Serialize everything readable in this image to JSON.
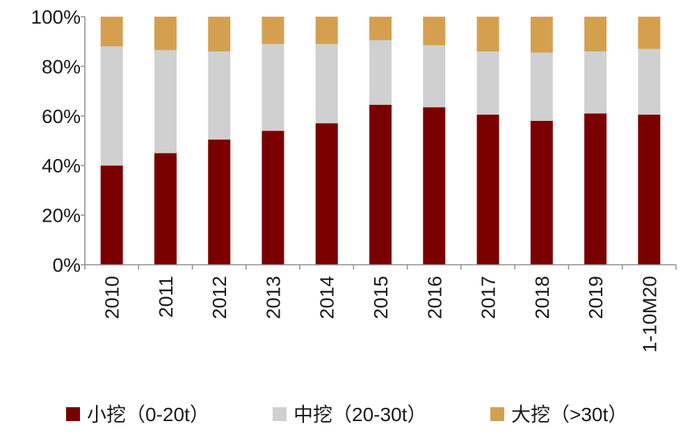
{
  "chart_data": {
    "type": "bar",
    "stacked": true,
    "categories": [
      "2010",
      "2011",
      "2012",
      "2013",
      "2014",
      "2015",
      "2016",
      "2017",
      "2018",
      "2019",
      "1-10M20"
    ],
    "series": [
      {
        "name": "小挖（0-20t）",
        "color": "#7a0000",
        "values": [
          40,
          45,
          50.5,
          54,
          57,
          64.5,
          63.5,
          60.5,
          58,
          61,
          60.5
        ]
      },
      {
        "name": "中挖（20-30t）",
        "color": "#d0d0d0",
        "values": [
          48,
          41.5,
          35.5,
          35,
          32,
          26,
          25,
          25.5,
          27.5,
          25,
          26.5
        ]
      },
      {
        "name": "大挖（>30t）",
        "color": "#d4a050",
        "values": [
          12,
          13.5,
          14,
          11,
          11,
          9.5,
          11.5,
          14,
          14.5,
          14,
          13
        ]
      }
    ],
    "y_ticks": [
      "0%",
      "20%",
      "40%",
      "60%",
      "80%",
      "100%"
    ],
    "ylim": [
      0,
      100
    ],
    "legend_position": "bottom"
  }
}
